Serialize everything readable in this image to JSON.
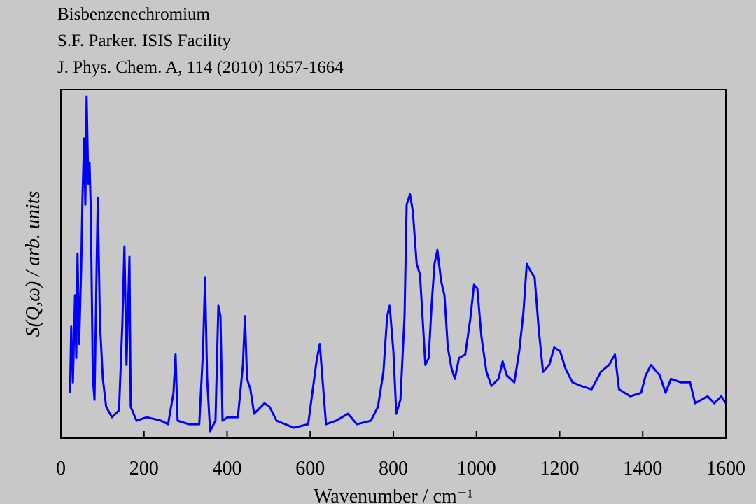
{
  "chart_data": {
    "type": "line",
    "title_lines": [
      "Bisbenzenechromium",
      "S.F. Parker. ISIS Facility",
      "J. Phys. Chem. A, 114 (2010) 1657-1664"
    ],
    "x_label": "Wavenumber / cm⁻¹",
    "y_label": "S(Q,ω) / arb. units",
    "color": "#0000ff",
    "xlim": [
      0,
      1600
    ],
    "xticks": [
      0,
      200,
      400,
      600,
      800,
      1000,
      1200,
      1400,
      1600
    ],
    "ylim": [
      0,
      100
    ],
    "x": [
      22,
      25,
      29,
      34,
      37,
      40,
      44,
      49,
      52,
      56,
      59,
      62,
      66,
      69,
      72,
      77,
      81,
      86,
      89,
      94,
      101,
      109,
      123,
      140,
      148,
      153,
      158,
      165,
      168,
      182,
      207,
      241,
      258,
      271,
      276,
      281,
      308,
      333,
      342,
      347,
      352,
      359,
      372,
      379,
      384,
      389,
      401,
      426,
      438,
      443,
      448,
      456,
      465,
      490,
      502,
      519,
      561,
      595,
      615,
      623,
      632,
      638,
      662,
      691,
      712,
      746,
      763,
      776,
      785,
      791,
      800,
      807,
      817,
      827,
      832,
      840,
      847,
      856,
      864,
      871,
      877,
      885,
      892,
      899,
      906,
      915,
      923,
      931,
      940,
      948,
      958,
      973,
      985,
      994,
      1002,
      1012,
      1024,
      1036,
      1053,
      1063,
      1073,
      1091,
      1103,
      1113,
      1121,
      1130,
      1140,
      1150,
      1160,
      1175,
      1187,
      1201,
      1214,
      1231,
      1251,
      1277,
      1299,
      1319,
      1333,
      1343,
      1370,
      1396,
      1407,
      1420,
      1441,
      1455,
      1468,
      1492,
      1514,
      1526,
      1556,
      1572,
      1589,
      1600
    ],
    "values": [
      13,
      32,
      16,
      41,
      23,
      53,
      27,
      49,
      69,
      86,
      67,
      98,
      73,
      79,
      65,
      17,
      11,
      49,
      69,
      33,
      17,
      9,
      6,
      8,
      33,
      55,
      21,
      52,
      9,
      5,
      6,
      5,
      4,
      13,
      24,
      5,
      4,
      4,
      25,
      46,
      17,
      2,
      5,
      38,
      35,
      5,
      6,
      6,
      21,
      35,
      17,
      14,
      7,
      10,
      9,
      5,
      3,
      4,
      22,
      27,
      13,
      4,
      5,
      7,
      4,
      5,
      9,
      19,
      35,
      38,
      25,
      7,
      11,
      35,
      67,
      70,
      65,
      50,
      47,
      33,
      21,
      23,
      38,
      50,
      54,
      45,
      41,
      26,
      20,
      17,
      23,
      24,
      34,
      44,
      43,
      29,
      19,
      15,
      17,
      22,
      18,
      16,
      25,
      36,
      50,
      48,
      46,
      31,
      19,
      21,
      26,
      25,
      20,
      16,
      15,
      14,
      19,
      21,
      24,
      14,
      12,
      13,
      18,
      21,
      18,
      13,
      17,
      16,
      16,
      10,
      12,
      10,
      12,
      10
    ]
  }
}
